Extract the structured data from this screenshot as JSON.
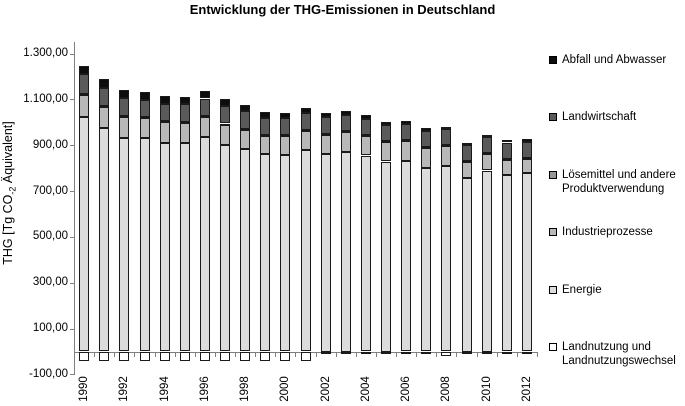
{
  "chart_data": {
    "type": "bar",
    "stacked": true,
    "title": "Entwicklung der THG-Emissionen in Deutschland",
    "ylabel": {
      "prefix": "THG [Tg CO",
      "sub": "-2",
      "suffix": " Äquivalent]",
      "full": "THG [Tg CO-2 Äquivalent]"
    },
    "ylim": [
      -100,
      1350
    ],
    "ytick_step": 200,
    "grid": false,
    "legend_position": "right",
    "yticks": [
      {
        "label": "1.300,00",
        "value": 1300
      },
      {
        "label": "1.100,00",
        "value": 1100
      },
      {
        "label": "900,00",
        "value": 900
      },
      {
        "label": "700,00",
        "value": 700
      },
      {
        "label": "500,00",
        "value": 500
      },
      {
        "label": "300,00",
        "value": 300
      },
      {
        "label": "100,00",
        "value": 100
      },
      {
        "label": "-100,00",
        "value": -100
      }
    ],
    "categories": [
      1990,
      1991,
      1992,
      1993,
      1994,
      1995,
      1996,
      1997,
      1998,
      1999,
      2000,
      2001,
      2002,
      2003,
      2004,
      2005,
      2006,
      2007,
      2008,
      2009,
      2010,
      2011,
      2012
    ],
    "xtick_label_every": 2,
    "series": [
      {
        "key": "landnutzung",
        "name": "Landnutzung und Landnutzungswechsel",
        "color": "#ffffff",
        "values": [
          -40,
          -40,
          -41,
          -40,
          -40,
          -40,
          -41,
          -40,
          -40,
          -40,
          -41,
          -42,
          -4,
          -4,
          -4,
          -4,
          -4,
          -4,
          -18,
          -10,
          -10,
          -9,
          -9
        ]
      },
      {
        "key": "energie",
        "name": "Energie",
        "color": "#dcdcdc",
        "values": [
          1022,
          975,
          932,
          930,
          911,
          909,
          937,
          903,
          884,
          860,
          858,
          880,
          864,
          873,
          855,
          829,
          833,
          799,
          809,
          757,
          790,
          770,
          778
        ]
      },
      {
        "key": "industrieprozesse",
        "name": "Industrieprozesse",
        "color": "#b8b8b8",
        "values": [
          96,
          92,
          91,
          88,
          90,
          89,
          86,
          88,
          84,
          81,
          85,
          83,
          83,
          85,
          87,
          87,
          88,
          92,
          88,
          71,
          73,
          69,
          65
        ]
      },
      {
        "key": "loesemittel",
        "name": "Lösemittel und andere Produktverwendung",
        "color": "#969696",
        "values": [
          4,
          4,
          4,
          4,
          4,
          4,
          4,
          4,
          4,
          4,
          4,
          4,
          3,
          3,
          3,
          3,
          3,
          3,
          3,
          3,
          3,
          3,
          3
        ]
      },
      {
        "key": "landwirtschaft",
        "name": "Landwirtschaft",
        "color": "#5a5a5a",
        "values": [
          88,
          80,
          78,
          77,
          77,
          77,
          77,
          77,
          76,
          75,
          74,
          74,
          72,
          71,
          71,
          69,
          68,
          69,
          70,
          69,
          69,
          70,
          70
        ]
      },
      {
        "key": "abfall",
        "name": "Abfall und Abwasser",
        "color": "#0d0d0d",
        "values": [
          38,
          37,
          36,
          35,
          34,
          33,
          31,
          29,
          26,
          24,
          22,
          20,
          18,
          17,
          15,
          14,
          13,
          12,
          12,
          11,
          11,
          10,
          10
        ]
      }
    ],
    "legend_order": [
      "abfall",
      "landwirtschaft",
      "loesemittel",
      "industrieprozesse",
      "energie",
      "landnutzung"
    ]
  }
}
